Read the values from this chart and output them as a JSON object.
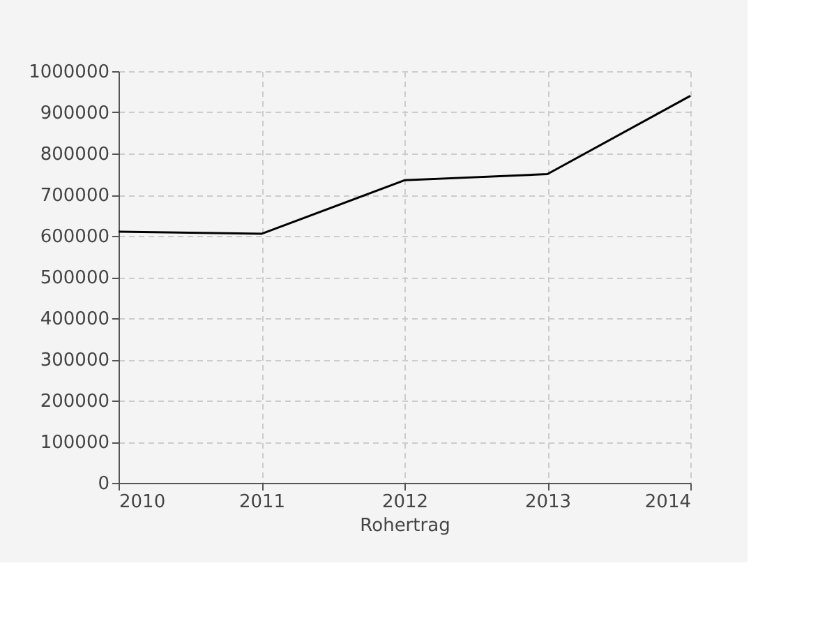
{
  "chart_data": {
    "type": "line",
    "xlabel": "Rohertrag",
    "x": [
      2010,
      2011,
      2012,
      2013,
      2014
    ],
    "series": [
      {
        "color": "#000000",
        "values": [
          610000,
          605000,
          735000,
          750000,
          940000
        ]
      }
    ],
    "xlim": [
      2010,
      2014
    ],
    "xticks": [
      2010,
      2011,
      2012,
      2013,
      2014
    ],
    "ylim": [
      0,
      1000000
    ],
    "yticks": [
      0,
      100000,
      200000,
      300000,
      400000,
      500000,
      600000,
      700000,
      800000,
      900000,
      1000000
    ],
    "grid": true,
    "marker": "none",
    "line_style": "solid"
  }
}
